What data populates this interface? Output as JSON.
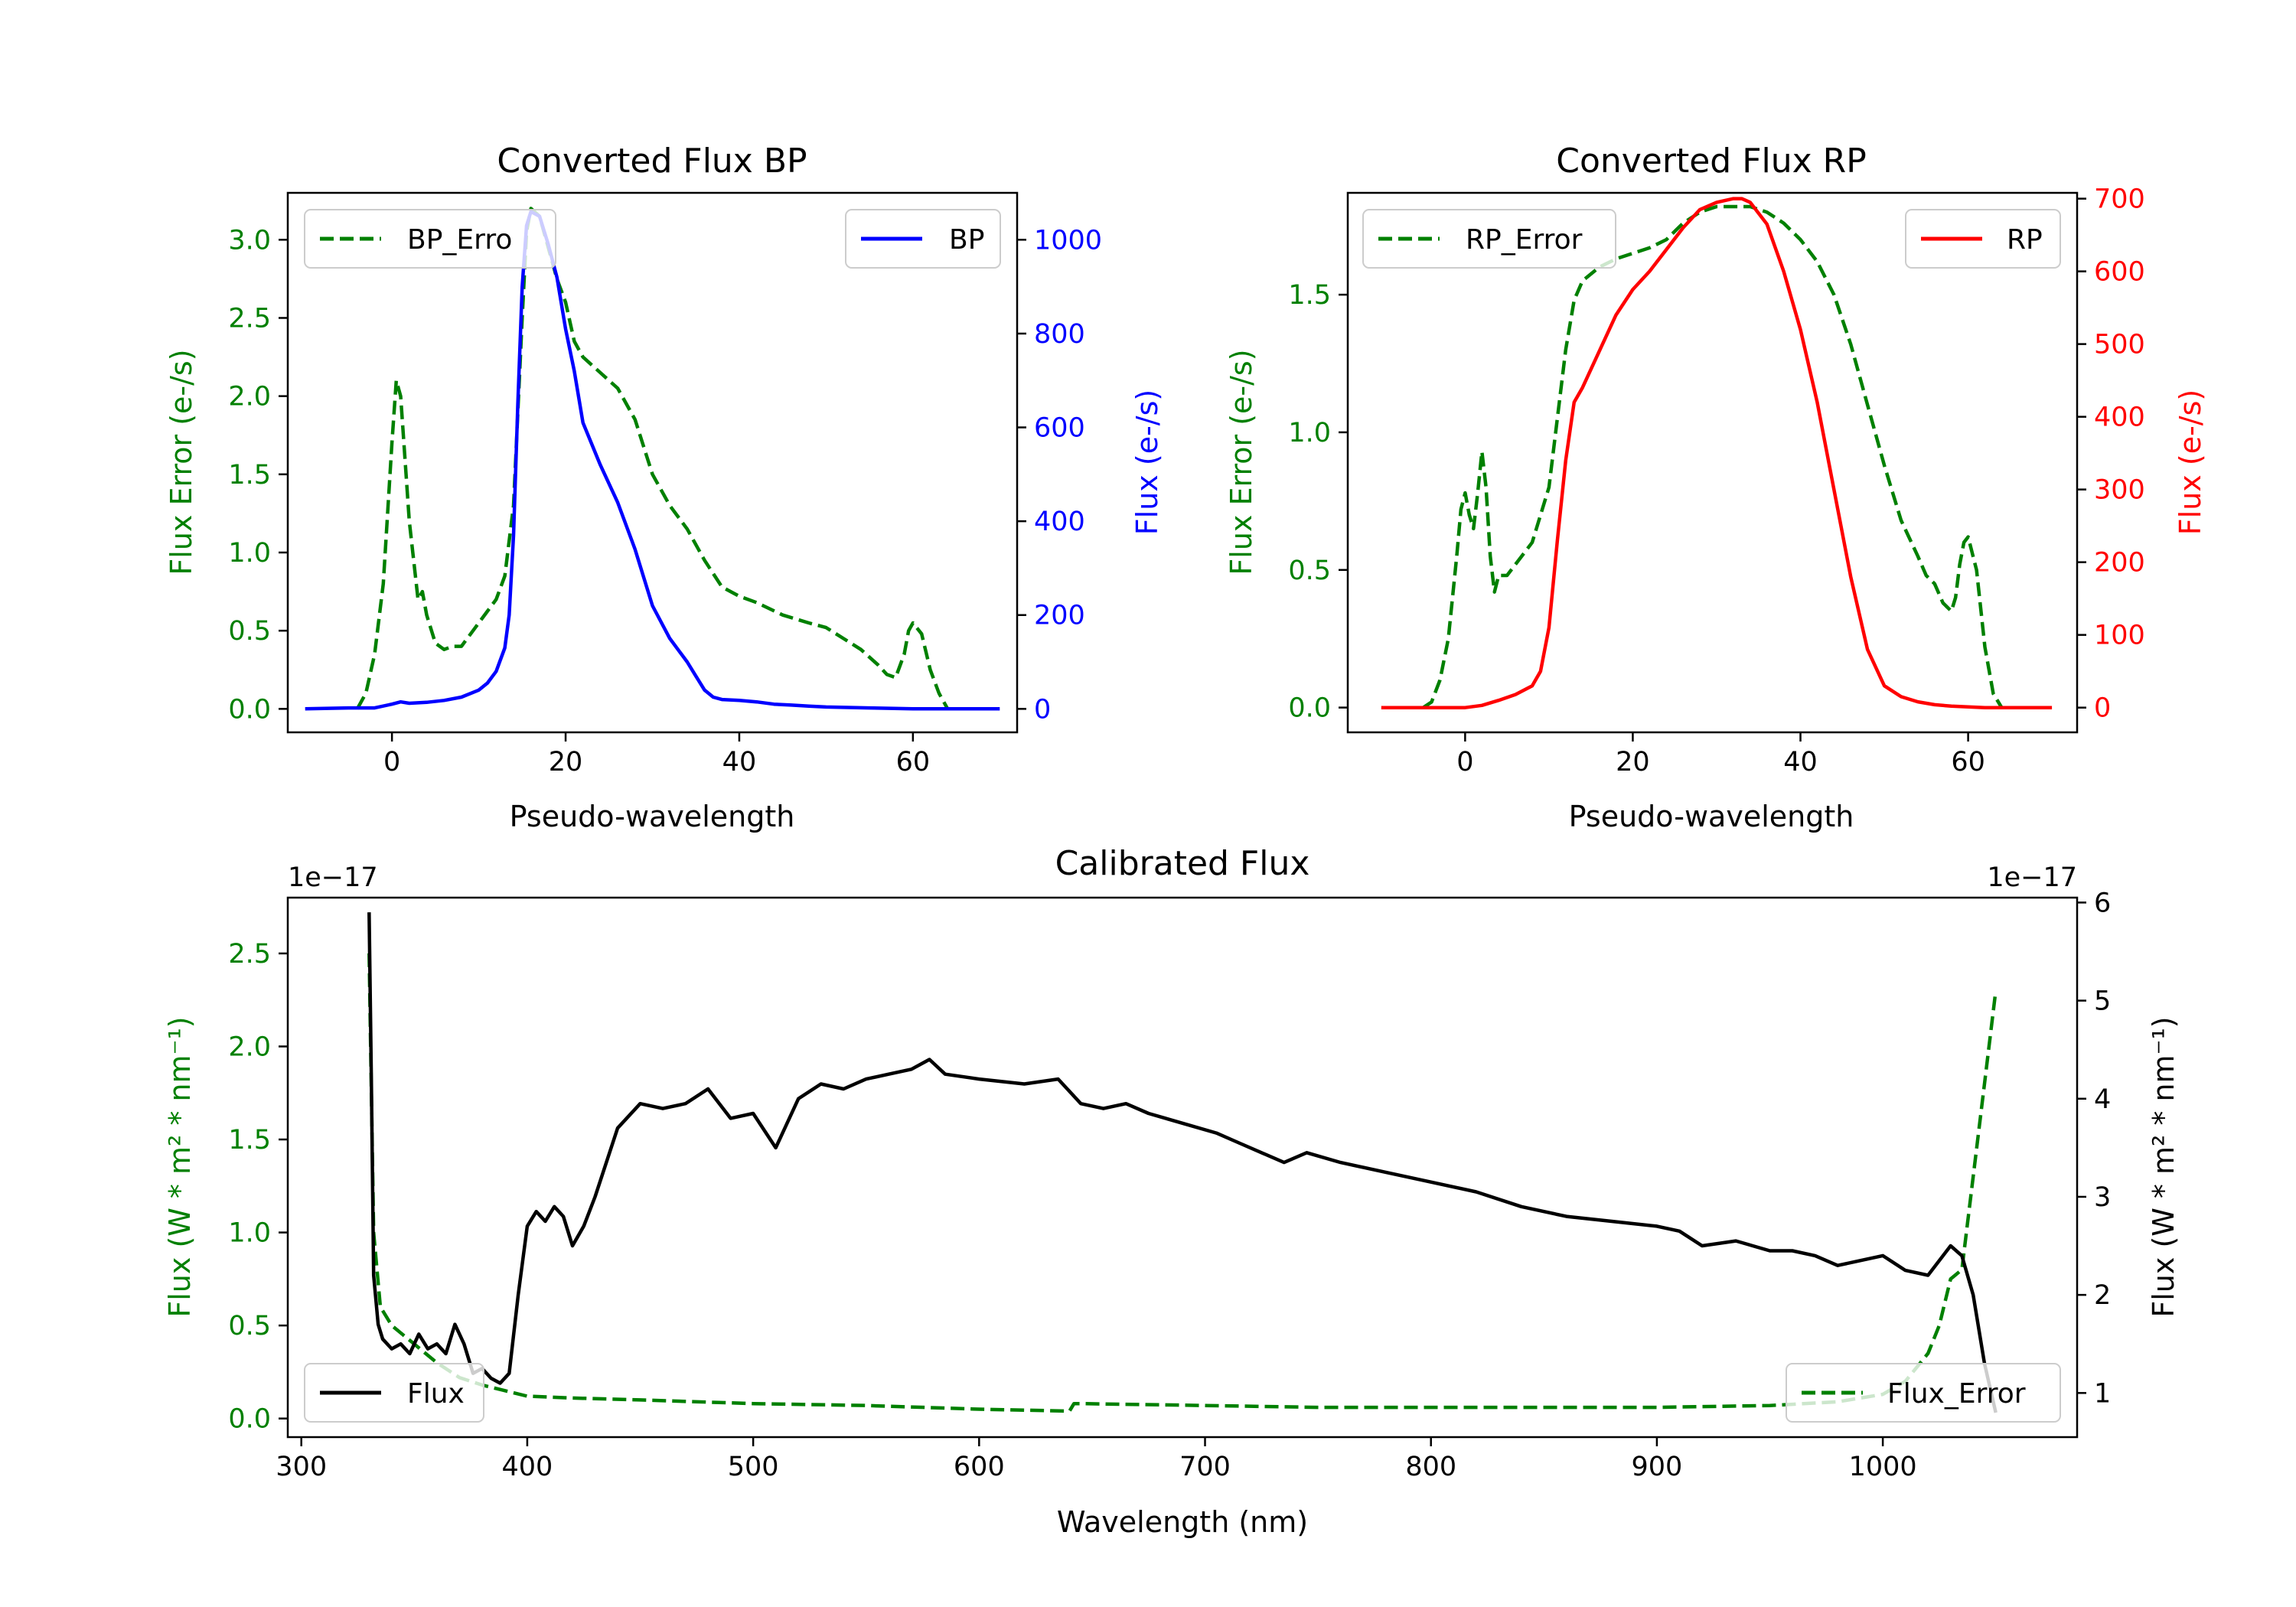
{
  "chart_data": [
    {
      "id": "bp",
      "type": "line",
      "title": "Converted Flux BP",
      "xlabel": "Pseudo-wavelength",
      "ylabel_left": "Flux Error (e-/s)",
      "ylabel_right": "Flux (e-/s)",
      "xlim": [
        -12,
        72
      ],
      "ylim_left": [
        -0.15,
        3.3
      ],
      "ylim_right": [
        -50,
        1100
      ],
      "xticks": [
        0,
        20,
        40,
        60
      ],
      "yticks_left": [
        0.0,
        0.5,
        1.0,
        1.5,
        2.0,
        2.5,
        3.0
      ],
      "yticks_right": [
        0,
        200,
        400,
        600,
        800,
        1000
      ],
      "left_axis_color": "#008000",
      "right_axis_color": "#0000ff",
      "legend_left": {
        "label": "BP_Error",
        "position": "upper left",
        "clipped_text": "BP_Erro"
      },
      "legend_right": {
        "label": "BP",
        "position": "upper right"
      },
      "series": [
        {
          "name": "BP_Error",
          "axis": "left",
          "color": "#008000",
          "style": "dashed",
          "x": [
            -4,
            -3,
            -2,
            -1,
            0,
            0.5,
            1,
            2,
            3,
            3.5,
            4,
            5,
            6,
            7,
            8,
            10,
            12,
            13,
            14,
            15,
            15.5,
            16,
            17,
            18,
            19,
            20,
            21,
            22,
            24,
            26,
            28,
            30,
            32,
            34,
            36,
            38,
            40,
            42,
            45,
            48,
            50,
            52,
            54,
            56,
            57,
            58,
            59,
            59.5,
            60,
            61,
            62,
            63,
            64
          ],
          "y": [
            0.0,
            0.1,
            0.35,
            0.8,
            1.7,
            2.1,
            2.0,
            1.2,
            0.7,
            0.75,
            0.6,
            0.42,
            0.38,
            0.4,
            0.4,
            0.55,
            0.7,
            0.85,
            1.3,
            2.5,
            3.05,
            3.2,
            3.15,
            2.95,
            2.75,
            2.6,
            2.35,
            2.25,
            2.15,
            2.05,
            1.85,
            1.5,
            1.3,
            1.15,
            0.95,
            0.78,
            0.72,
            0.68,
            0.6,
            0.55,
            0.52,
            0.45,
            0.38,
            0.28,
            0.22,
            0.2,
            0.35,
            0.5,
            0.55,
            0.48,
            0.25,
            0.1,
            0.0
          ]
        },
        {
          "name": "BP",
          "axis": "right",
          "color": "#0000ff",
          "style": "solid",
          "x": [
            -10,
            -5,
            -2,
            0,
            1,
            2,
            4,
            6,
            8,
            10,
            11,
            12,
            13,
            13.5,
            14,
            14.5,
            15,
            15.5,
            16,
            17,
            18,
            19,
            20,
            21,
            22,
            24,
            26,
            28,
            30,
            32,
            34,
            35,
            36,
            37,
            38,
            40,
            42,
            44,
            46,
            48,
            50,
            55,
            60,
            62,
            65,
            70
          ],
          "y": [
            0,
            2,
            2,
            10,
            15,
            12,
            14,
            18,
            25,
            40,
            55,
            80,
            130,
            200,
            370,
            650,
            900,
            1030,
            1060,
            1050,
            990,
            920,
            810,
            720,
            610,
            520,
            440,
            340,
            220,
            150,
            100,
            70,
            40,
            25,
            20,
            18,
            15,
            10,
            8,
            6,
            4,
            2,
            0,
            0,
            0,
            0
          ]
        }
      ]
    },
    {
      "id": "rp",
      "type": "line",
      "title": "Converted Flux RP",
      "xlabel": "Pseudo-wavelength",
      "ylabel_left": "Flux Error (e-/s)",
      "ylabel_right": "Flux (e-/s)",
      "xlim": [
        -14,
        73
      ],
      "ylim_left": [
        -0.09,
        1.87
      ],
      "ylim_right": [
        -34,
        708
      ],
      "xticks": [
        0,
        20,
        40,
        60
      ],
      "yticks_left": [
        0.0,
        0.5,
        1.0,
        1.5
      ],
      "yticks_right": [
        0,
        100,
        200,
        300,
        400,
        500,
        600,
        700
      ],
      "left_axis_color": "#008000",
      "right_axis_color": "#ff0000",
      "legend_left": {
        "label": "RP_Error",
        "position": "upper left"
      },
      "legend_right": {
        "label": "RP",
        "position": "upper right"
      },
      "series": [
        {
          "name": "RP_Error",
          "axis": "left",
          "color": "#008000",
          "style": "dashed",
          "x": [
            -5,
            -4,
            -3,
            -2,
            -1,
            -0.5,
            0,
            0.5,
            1,
            1.5,
            2,
            2.5,
            3,
            3.5,
            4,
            5,
            6,
            8,
            10,
            12,
            13,
            14,
            16,
            18,
            20,
            22,
            24,
            26,
            28,
            30,
            32,
            34,
            36,
            38,
            40,
            42,
            44,
            46,
            48,
            50,
            52,
            54,
            55,
            56,
            57,
            58,
            58.5,
            59,
            59.5,
            60,
            61,
            62,
            63,
            64
          ],
          "y": [
            0.0,
            0.02,
            0.1,
            0.25,
            0.55,
            0.72,
            0.78,
            0.7,
            0.65,
            0.78,
            0.93,
            0.8,
            0.55,
            0.42,
            0.48,
            0.48,
            0.52,
            0.6,
            0.8,
            1.3,
            1.48,
            1.55,
            1.6,
            1.63,
            1.65,
            1.67,
            1.7,
            1.76,
            1.8,
            1.82,
            1.82,
            1.82,
            1.8,
            1.76,
            1.7,
            1.62,
            1.5,
            1.32,
            1.1,
            0.88,
            0.68,
            0.55,
            0.48,
            0.45,
            0.38,
            0.35,
            0.4,
            0.52,
            0.6,
            0.62,
            0.5,
            0.22,
            0.05,
            0.0
          ]
        },
        {
          "name": "RP",
          "axis": "right",
          "color": "#ff0000",
          "style": "solid",
          "x": [
            -10,
            -5,
            0,
            2,
            4,
            6,
            8,
            9,
            10,
            11,
            12,
            12.5,
            13,
            14,
            16,
            18,
            20,
            22,
            24,
            26,
            28,
            30,
            32,
            33,
            34,
            36,
            38,
            40,
            42,
            44,
            46,
            48,
            50,
            52,
            54,
            56,
            58,
            60,
            62,
            65,
            70
          ],
          "y": [
            0,
            0,
            0,
            3,
            10,
            18,
            30,
            50,
            110,
            230,
            340,
            380,
            420,
            440,
            490,
            540,
            575,
            600,
            630,
            660,
            685,
            695,
            700,
            700,
            695,
            665,
            600,
            520,
            420,
            300,
            180,
            80,
            30,
            15,
            8,
            4,
            2,
            1,
            0,
            0,
            0
          ]
        }
      ]
    },
    {
      "id": "cal",
      "type": "line",
      "title": "Calibrated Flux",
      "xlabel": "Wavelength (nm)",
      "ylabel_left": "Flux (W * m$^2$ * nm$^{-1}$)",
      "ylabel_right": "Flux (W * m$^2$ * nm$^{-1}$)",
      "ylabel_text": "Flux (W * m² * nm⁻¹)",
      "offset_left": "1e−17",
      "offset_right": "1e−17",
      "xlim": [
        294,
        1086
      ],
      "ylim_left": [
        -0.1,
        2.8
      ],
      "ylim_right": [
        0.55,
        6.05
      ],
      "xticks": [
        300,
        400,
        500,
        600,
        700,
        800,
        900,
        1000
      ],
      "yticks_left": [
        0.0,
        0.5,
        1.0,
        1.5,
        2.0,
        2.5
      ],
      "yticks_right": [
        1,
        2,
        3,
        4,
        5,
        6
      ],
      "left_axis_color": "#008000",
      "right_axis_color": "#000000",
      "legend_left": {
        "label": "Flux",
        "position": "lower left"
      },
      "legend_right": {
        "label": "Flux_Error",
        "position": "lower right"
      },
      "series": [
        {
          "name": "Flux_Error",
          "axis": "left",
          "color": "#008000",
          "style": "dashed",
          "x": [
            330,
            332,
            335,
            340,
            345,
            350,
            360,
            370,
            380,
            390,
            400,
            420,
            450,
            500,
            550,
            600,
            640,
            642,
            645,
            700,
            750,
            800,
            850,
            900,
            950,
            980,
            1000,
            1010,
            1020,
            1025,
            1030,
            1035,
            1040,
            1045,
            1050
          ],
          "y": [
            2.5,
            1.0,
            0.6,
            0.5,
            0.45,
            0.4,
            0.3,
            0.22,
            0.18,
            0.15,
            0.12,
            0.11,
            0.1,
            0.08,
            0.07,
            0.05,
            0.04,
            0.08,
            0.08,
            0.07,
            0.06,
            0.06,
            0.06,
            0.06,
            0.07,
            0.09,
            0.13,
            0.2,
            0.35,
            0.5,
            0.75,
            0.8,
            1.3,
            1.8,
            2.3
          ]
        },
        {
          "name": "Flux",
          "axis": "right",
          "color": "#000000",
          "style": "solid",
          "x": [
            330,
            331,
            332,
            334,
            336,
            340,
            344,
            348,
            352,
            356,
            360,
            364,
            368,
            372,
            376,
            380,
            384,
            388,
            392,
            396,
            400,
            404,
            408,
            412,
            416,
            420,
            425,
            430,
            440,
            450,
            460,
            470,
            480,
            490,
            500,
            510,
            520,
            530,
            540,
            550,
            560,
            570,
            578,
            585,
            600,
            620,
            635,
            645,
            655,
            665,
            675,
            690,
            705,
            715,
            725,
            735,
            745,
            760,
            780,
            800,
            820,
            840,
            860,
            880,
            900,
            910,
            920,
            935,
            950,
            960,
            970,
            980,
            990,
            1000,
            1010,
            1020,
            1030,
            1035,
            1040,
            1045,
            1050
          ],
          "y": [
            5.9,
            4.2,
            2.2,
            1.7,
            1.55,
            1.45,
            1.5,
            1.4,
            1.6,
            1.45,
            1.5,
            1.4,
            1.7,
            1.5,
            1.2,
            1.25,
            1.15,
            1.1,
            1.2,
            2.0,
            2.7,
            2.85,
            2.75,
            2.9,
            2.8,
            2.5,
            2.7,
            3.0,
            3.7,
            3.95,
            3.9,
            3.95,
            4.1,
            3.8,
            3.85,
            3.5,
            4.0,
            4.15,
            4.1,
            4.2,
            4.25,
            4.3,
            4.4,
            4.25,
            4.2,
            4.15,
            4.2,
            3.95,
            3.9,
            3.95,
            3.85,
            3.75,
            3.65,
            3.55,
            3.45,
            3.35,
            3.45,
            3.35,
            3.25,
            3.15,
            3.05,
            2.9,
            2.8,
            2.75,
            2.7,
            2.65,
            2.5,
            2.55,
            2.45,
            2.45,
            2.4,
            2.3,
            2.35,
            2.4,
            2.25,
            2.2,
            2.5,
            2.4,
            2.0,
            1.3,
            0.8
          ]
        }
      ]
    }
  ]
}
